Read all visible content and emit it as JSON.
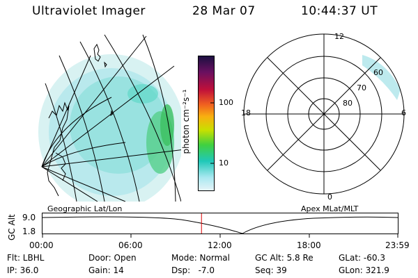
{
  "header": {
    "instrument": "Ultraviolet Imager",
    "date": "28 Mar 07",
    "time": "10:44:37 UT"
  },
  "colorbar": {
    "unit_label": "photon cm⁻²s⁻¹",
    "ticks": [
      "100",
      "10"
    ]
  },
  "left_panel": {
    "caption": "Geographic Lat/Lon"
  },
  "polar_panel": {
    "caption": "Apex MLat/MLT",
    "mlt_labels": {
      "top": "12",
      "left": "18",
      "right": "6",
      "bottom": "0"
    },
    "lat_labels": [
      "60",
      "70",
      "80"
    ]
  },
  "timeline": {
    "ylabel": "GC Alt",
    "y_ticks": [
      "9.0",
      "1.8"
    ],
    "x_ticks": [
      "00:00",
      "06:00",
      "12:00",
      "18:00",
      "23:59"
    ],
    "current_time_hours": 10.74,
    "current_marker_color": "#dd0000"
  },
  "params": {
    "flt": "Flt: LBHL",
    "ip": "IP: 36.0",
    "door": "Door: Open",
    "gain": "Gain: 14",
    "mode": "Mode: Normal",
    "dsp": "Dsp:   -7.0",
    "gcalt": "GC Alt: 5.8 Re",
    "seq": "Seq: 39",
    "glat": "GLat: -60.3",
    "glon": "GLon: 321.9"
  }
}
